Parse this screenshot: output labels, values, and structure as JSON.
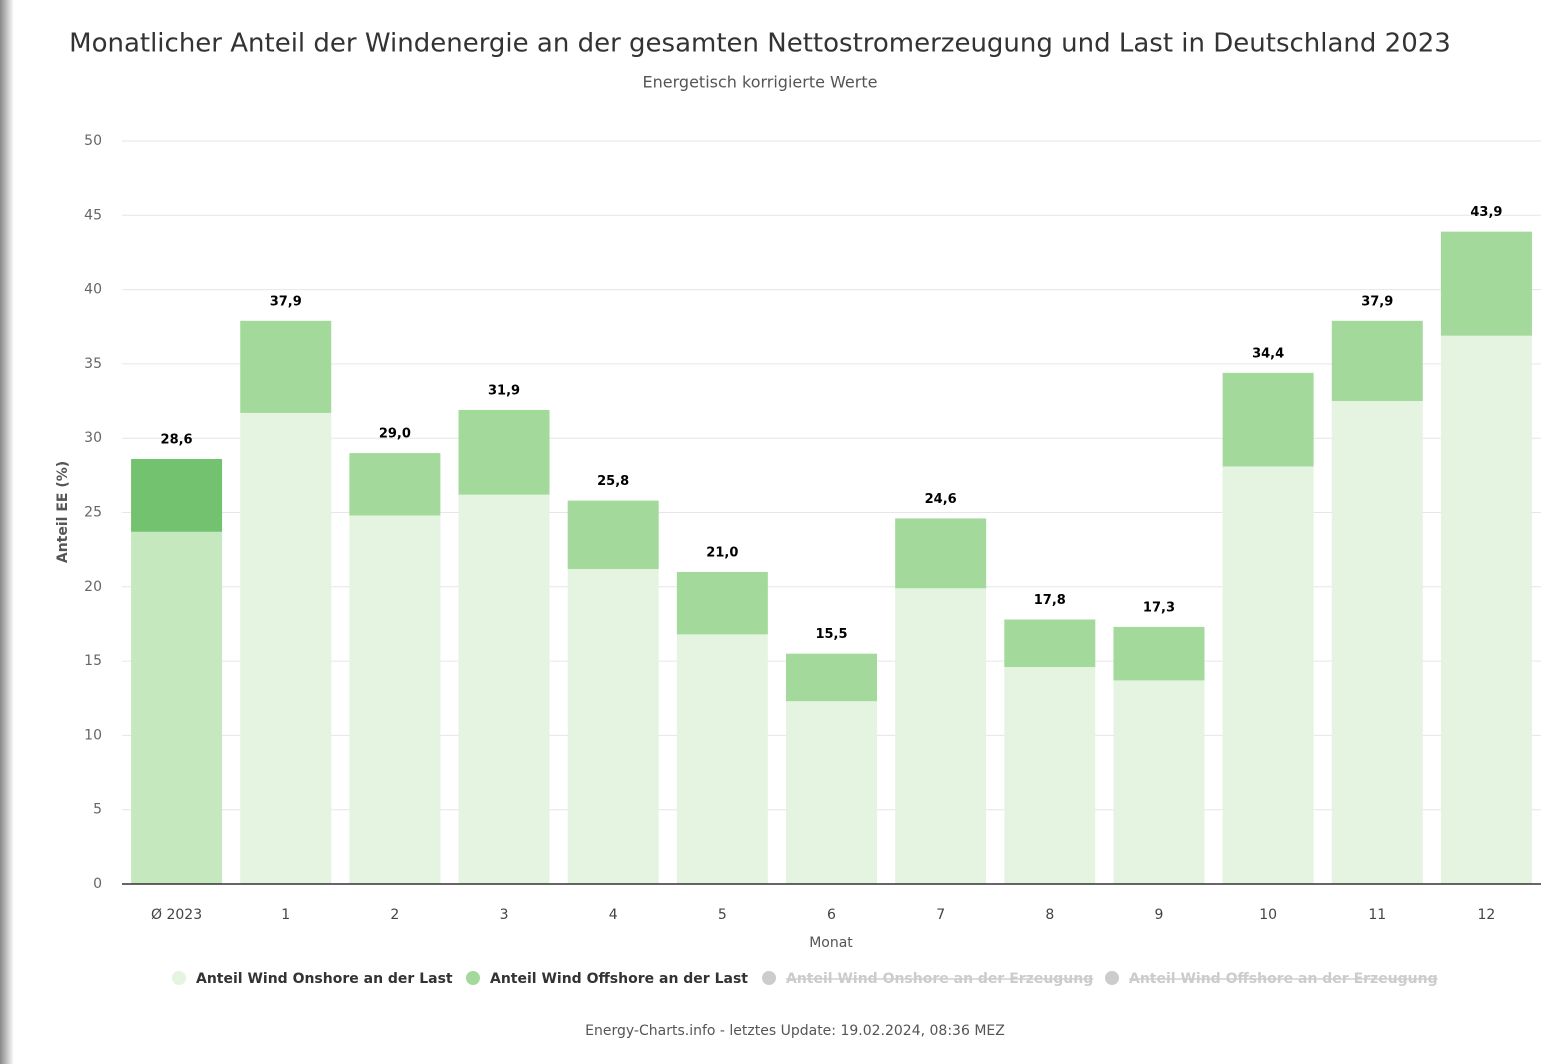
{
  "chart_data": {
    "type": "stacked_bar",
    "title": "Monatlicher Anteil der Windenergie an der gesamten Nettostromerzeugung und Last in Deutschland 2023",
    "subtitle": "Energetisch korrigierte Werte",
    "y_label": "Anteil EE (%)",
    "x_label": "Monat",
    "categories": [
      "Ø 2023",
      "1",
      "2",
      "3",
      "4",
      "5",
      "6",
      "7",
      "8",
      "9",
      "10",
      "11",
      "12"
    ],
    "series": [
      {
        "name": "Anteil Wind Onshore an der Last",
        "color": "#e4f4e0",
        "colors": [
          "#c6e8bf",
          "#e4f4e0",
          "#e4f4e0",
          "#e4f4e0",
          "#e4f4e0",
          "#e4f4e0",
          "#e4f4e0",
          "#e4f4e0",
          "#e4f4e0",
          "#e4f4e0",
          "#e4f4e0",
          "#e4f4e0",
          "#e4f4e0"
        ],
        "values": [
          23.7,
          31.7,
          24.8,
          26.2,
          21.2,
          16.8,
          12.3,
          19.9,
          14.6,
          13.7,
          28.1,
          32.5,
          36.9
        ]
      },
      {
        "name": "Anteil Wind Offshore an der Last",
        "color": "#a3d99a",
        "colors": [
          "#72c270",
          "#a3d99a",
          "#a3d99a",
          "#a3d99a",
          "#a3d99a",
          "#a3d99a",
          "#a3d99a",
          "#a3d99a",
          "#a3d99a",
          "#a3d99a",
          "#a3d99a",
          "#a3d99a",
          "#a3d99a"
        ],
        "values": [
          4.9,
          6.2,
          4.2,
          5.7,
          4.6,
          4.2,
          3.2,
          4.7,
          3.2,
          3.6,
          6.3,
          5.4,
          7.0
        ]
      }
    ],
    "totals": [
      28.6,
      37.9,
      29.0,
      31.9,
      25.8,
      21.0,
      15.5,
      24.6,
      17.8,
      17.3,
      34.4,
      37.9,
      43.9
    ],
    "total_labels": [
      "28,6",
      "37,9",
      "29,0",
      "31,9",
      "25,8",
      "21,0",
      "15,5",
      "24,6",
      "17,8",
      "17,3",
      "34,4",
      "37,9",
      "43,9"
    ],
    "hidden_legend": [
      "Anteil Wind Onshore an der Erzeugung",
      "Anteil Wind Offshore an der Erzeugung"
    ],
    "hidden_color": "#cccccc",
    "ylim": [
      0,
      50
    ],
    "yticks": [
      0,
      5,
      10,
      15,
      20,
      25,
      30,
      35,
      40,
      45,
      50
    ],
    "grid": true,
    "footer": "Energy-Charts.info - letztes Update: 19.02.2024, 08:36 MEZ"
  }
}
